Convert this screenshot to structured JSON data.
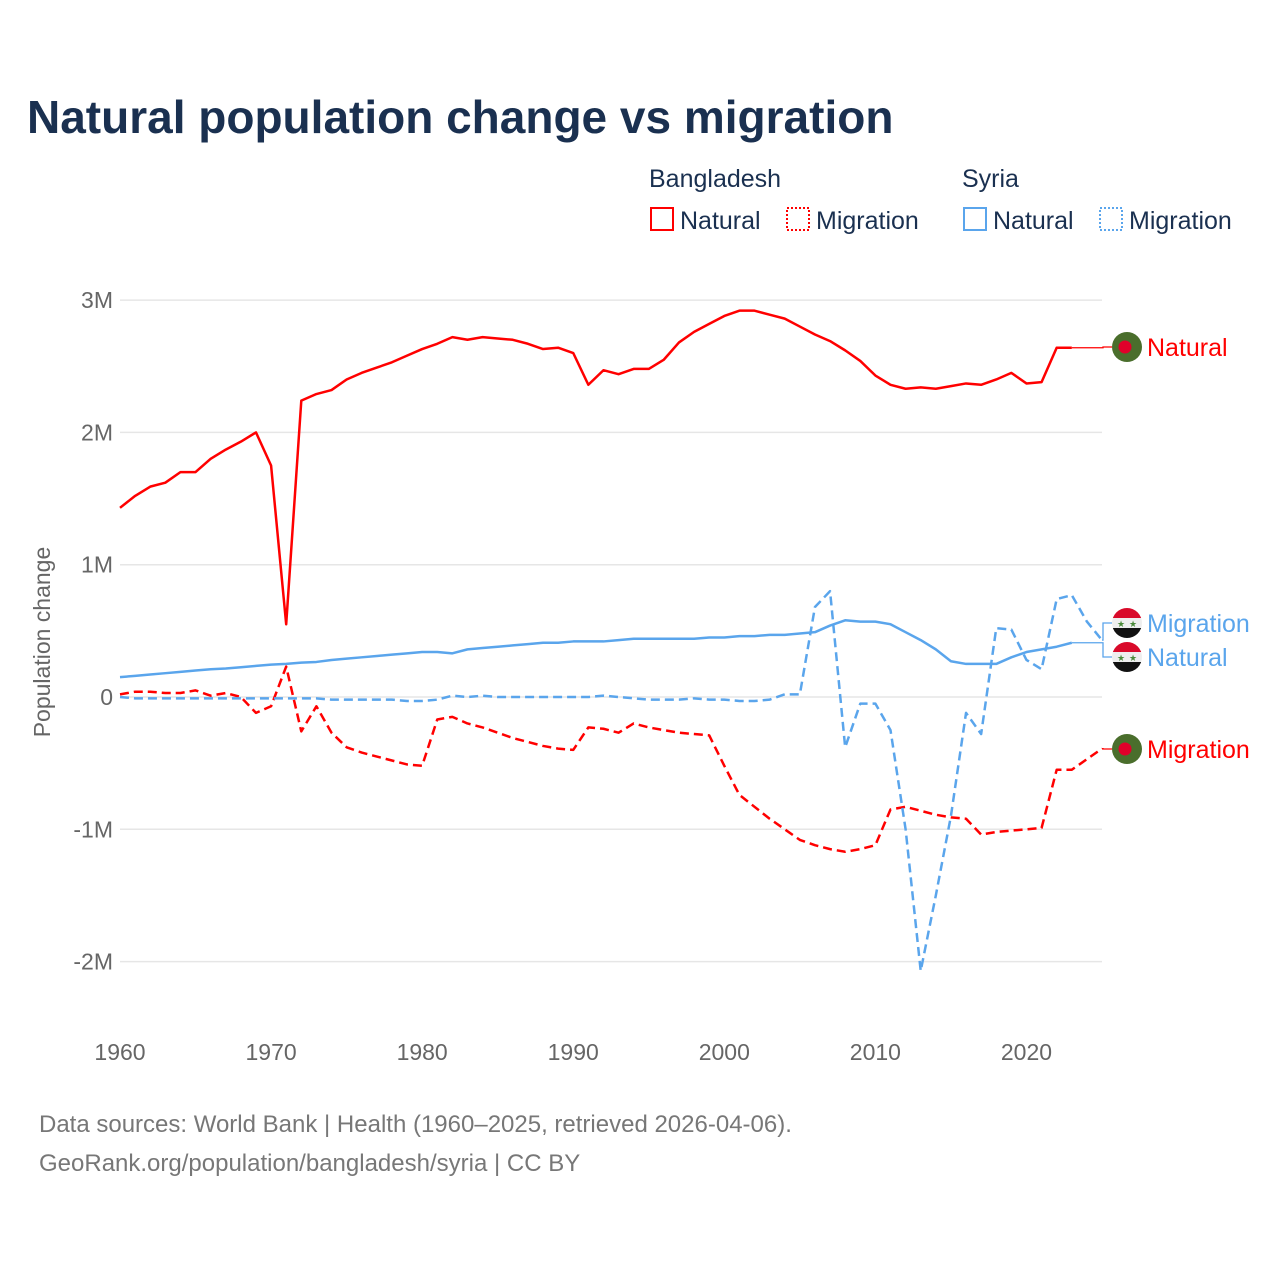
{
  "chart_data": {
    "type": "line",
    "title": "Natural population change vs migration",
    "ylabel": "Population change",
    "xlabel": "",
    "unit": "millions",
    "xlim": [
      1960,
      2025
    ],
    "ylim": [
      -2.3,
      3.1
    ],
    "x_ticks": [
      1960,
      1970,
      1980,
      1990,
      2000,
      2010,
      2020
    ],
    "x_tick_labels": [
      "1960",
      "1970",
      "1980",
      "1990",
      "2000",
      "2010",
      "2020"
    ],
    "y_ticks": [
      3,
      2,
      1,
      0,
      -1,
      -2
    ],
    "y_tick_labels": [
      "3M",
      "2M",
      "1M",
      "0",
      "-1M",
      "-2M"
    ],
    "grid": true,
    "legend": {
      "placement": "top-right",
      "groups": [
        {
          "name": "Bangladesh",
          "items": [
            "Natural",
            "Migration"
          ]
        },
        {
          "name": "Syria",
          "items": [
            "Natural",
            "Migration"
          ]
        }
      ]
    },
    "series": [
      {
        "name": "Natural",
        "country": "Bangladesh",
        "color": "#ff0000",
        "dash": false,
        "start_year": 1960,
        "values": [
          1.43,
          1.52,
          1.59,
          1.62,
          1.7,
          1.7,
          1.8,
          1.87,
          1.93,
          2.0,
          1.75,
          0.55,
          2.24,
          2.29,
          2.32,
          2.4,
          2.45,
          2.49,
          2.53,
          2.58,
          2.63,
          2.67,
          2.72,
          2.7,
          2.72,
          2.71,
          2.7,
          2.67,
          2.63,
          2.64,
          2.6,
          2.36,
          2.47,
          2.44,
          2.48,
          2.48,
          2.55,
          2.68,
          2.76,
          2.82,
          2.88,
          2.92,
          2.92,
          2.89,
          2.86,
          2.8,
          2.74,
          2.69,
          2.62,
          2.54,
          2.43,
          2.36,
          2.33,
          2.34,
          2.33,
          2.35,
          2.37,
          2.36,
          2.4,
          2.45,
          2.37,
          2.38,
          2.64,
          2.64
        ],
        "end_label": "Natural",
        "label_value": 2.64
      },
      {
        "name": "Migration",
        "country": "Bangladesh",
        "color": "#ff0000",
        "dash": true,
        "start_year": 1960,
        "values": [
          0.02,
          0.04,
          0.04,
          0.03,
          0.03,
          0.05,
          0.01,
          0.03,
          0,
          -0.12,
          -0.07,
          0.23,
          -0.26,
          -0.07,
          -0.27,
          -0.38,
          -0.42,
          -0.45,
          -0.48,
          -0.51,
          -0.52,
          -0.17,
          -0.15,
          -0.2,
          -0.23,
          -0.27,
          -0.31,
          -0.34,
          -0.37,
          -0.39,
          -0.4,
          -0.23,
          -0.24,
          -0.27,
          -0.2,
          -0.23,
          -0.25,
          -0.27,
          -0.28,
          -0.29,
          -0.52,
          -0.74,
          -0.83,
          -0.92,
          -1.0,
          -1.08,
          -1.12,
          -1.15,
          -1.17,
          -1.15,
          -1.12,
          -0.85,
          -0.83,
          -0.86,
          -0.89,
          -0.91,
          -0.92,
          -1.04,
          -1.02,
          -1.01,
          -1.0,
          -0.99,
          -0.55,
          -0.55,
          -0.47,
          -0.39
        ],
        "end_label": "Migration",
        "label_value": -0.39
      },
      {
        "name": "Natural",
        "country": "Syria",
        "color": "#5aa5ec",
        "dash": false,
        "start_year": 1960,
        "values": [
          0.15,
          0.16,
          0.17,
          0.18,
          0.19,
          0.2,
          0.21,
          0.215,
          0.225,
          0.235,
          0.245,
          0.25,
          0.26,
          0.265,
          0.28,
          0.29,
          0.3,
          0.31,
          0.32,
          0.33,
          0.34,
          0.34,
          0.33,
          0.36,
          0.37,
          0.38,
          0.39,
          0.4,
          0.41,
          0.41,
          0.42,
          0.42,
          0.42,
          0.43,
          0.44,
          0.44,
          0.44,
          0.44,
          0.44,
          0.45,
          0.45,
          0.46,
          0.46,
          0.47,
          0.47,
          0.48,
          0.49,
          0.54,
          0.58,
          0.57,
          0.57,
          0.55,
          0.49,
          0.43,
          0.36,
          0.27,
          0.25,
          0.25,
          0.25,
          0.3,
          0.34,
          0.36,
          0.38,
          0.41
        ],
        "end_label": "Natural",
        "label_value": 0.3
      },
      {
        "name": "Migration",
        "country": "Syria",
        "color": "#5aa5ec",
        "dash": true,
        "start_year": 1960,
        "values": [
          0,
          -0.01,
          -0.01,
          -0.01,
          -0.01,
          -0.01,
          -0.01,
          -0.01,
          -0.01,
          -0.01,
          -0.01,
          -0.01,
          -0.01,
          -0.01,
          -0.02,
          -0.02,
          -0.02,
          -0.02,
          -0.02,
          -0.03,
          -0.03,
          -0.02,
          0.01,
          0,
          0.01,
          0,
          0,
          0,
          0,
          0,
          0,
          0,
          0.01,
          0,
          -0.01,
          -0.02,
          -0.02,
          -0.02,
          -0.01,
          -0.02,
          -0.02,
          -0.03,
          -0.03,
          -0.02,
          0.02,
          0.02,
          0.68,
          0.8,
          -0.38,
          -0.05,
          -0.05,
          -0.25,
          -1.0,
          -2.07,
          -1.5,
          -0.9,
          -0.12,
          -0.28,
          0.52,
          0.51,
          0.28,
          0.21,
          0.74,
          0.77,
          0.57,
          0.43
        ],
        "end_label": "Migration",
        "label_value": 0.56
      }
    ]
  },
  "source": {
    "line1": "Data sources: World Bank | Health (1960–2025, retrieved 2026-04-06).",
    "line2": "GeoRank.org/population/bangladesh/syria | CC BY"
  }
}
